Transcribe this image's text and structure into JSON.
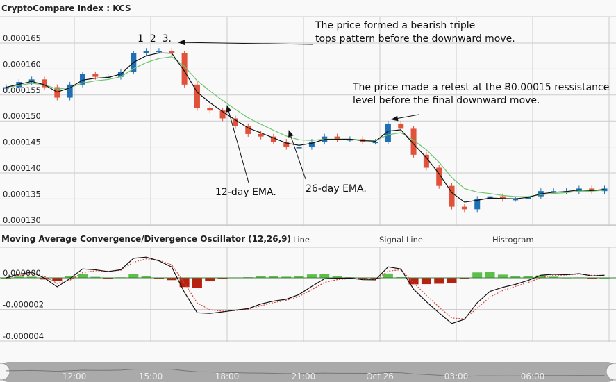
{
  "header": {
    "title": "CryptoCompare Index : KCS"
  },
  "macd_panel": {
    "title": "Moving Average Convergence/Divergence Oscillator (12,26,9)",
    "legend": [
      "Line",
      "Signal Line",
      "Histogram"
    ]
  },
  "annotations": {
    "peaks": "1  2  3.",
    "triple_top": [
      "The price formed a bearish triple",
      "tops pattern before the downward move."
    ],
    "retest": [
      "The price made a retest at the Ƀ0.00015 ressistance",
      "level before the final downward move."
    ],
    "ema12": "12-day EMA.",
    "ema26": "26-day EMA."
  },
  "colors": {
    "up": "#1f6fb5",
    "down": "#e0523a",
    "ema12": "#111111",
    "ema26": "#6cc46c",
    "macd_line": "#111111",
    "signal_line": "#d9443a",
    "hist_pos": "#5cbf4a",
    "hist_neg": "#b82010"
  },
  "chart_data": {
    "type": "candlestick",
    "price_axis": {
      "ticks": [
        "0.000165",
        "0.000160",
        "0.000155",
        "0.000150",
        "0.000145",
        "0.000140",
        "0.000135",
        "0.000130"
      ],
      "ylim": [
        0.00013,
        0.000165
      ]
    },
    "macd_axis": {
      "ticks": [
        "0.000000",
        "-0.000002",
        "-0.000004"
      ]
    },
    "time_ticks": [
      "12:00",
      "15:00",
      "18:00",
      "21:00",
      "Oct 26",
      "03:00",
      "06:00"
    ],
    "x": [
      "09:30",
      "10:00",
      "10:30",
      "11:00",
      "11:30",
      "12:00",
      "12:30",
      "13:00",
      "13:30",
      "14:00",
      "14:30",
      "15:00",
      "15:30",
      "16:00",
      "16:30",
      "17:00",
      "17:30",
      "18:00",
      "18:30",
      "19:00",
      "19:30",
      "20:00",
      "20:30",
      "21:00",
      "21:30",
      "22:00",
      "22:30",
      "23:00",
      "23:30",
      "Oct 26 00:00",
      "00:30",
      "01:00",
      "01:30",
      "02:00",
      "02:30",
      "03:00",
      "03:30",
      "04:00",
      "04:30",
      "05:00",
      "05:30",
      "06:00",
      "06:30",
      "07:00",
      "07:30",
      "08:00",
      "08:30",
      "09:00"
    ],
    "close": [
      0.0001565,
      0.0001575,
      0.000158,
      0.0001565,
      0.0001545,
      0.000157,
      0.000159,
      0.0001585,
      0.0001585,
      0.0001595,
      0.000163,
      0.0001635,
      0.0001635,
      0.000163,
      0.000157,
      0.0001525,
      0.000152,
      0.0001505,
      0.000149,
      0.0001475,
      0.000147,
      0.000146,
      0.000145,
      0.000145,
      0.000146,
      0.000147,
      0.0001465,
      0.0001465,
      0.000146,
      0.000146,
      0.0001495,
      0.0001485,
      0.0001435,
      0.000141,
      0.0001375,
      0.0001335,
      0.000133,
      0.000135,
      0.0001355,
      0.000135,
      0.000135,
      0.0001355,
      0.0001365,
      0.0001365,
      0.0001365,
      0.000137,
      0.0001365,
      0.000137
    ],
    "series": [
      {
        "name": "12-day EMA."
      },
      {
        "name": "26-day EMA."
      }
    ],
    "grid": true
  }
}
